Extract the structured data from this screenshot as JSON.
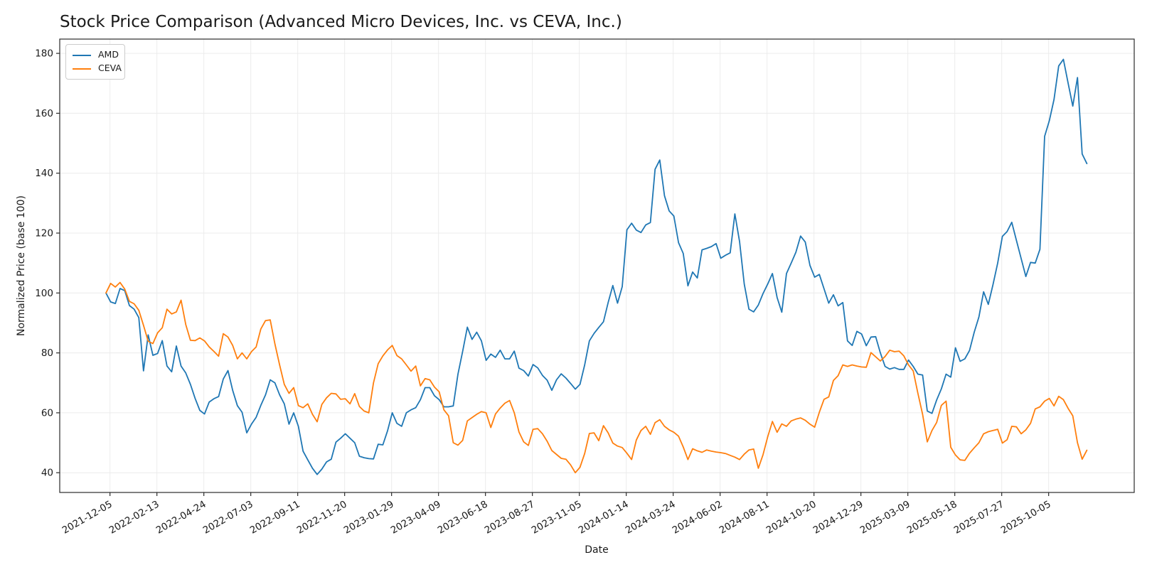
{
  "title": "Stock Price Comparison (Advanced Micro Devices, Inc. vs CEVA, Inc.)",
  "xlabel": "Date",
  "ylabel": "Normalized Price (base 100)",
  "colors": {
    "amd_line": "#1f77b4",
    "ceva_line": "#ff7f0e",
    "grid": "#ececec",
    "spine": "#2b2b2b",
    "text": "#1a1a1a"
  },
  "chart_data": {
    "type": "line",
    "title": "Stock Price Comparison (Advanced Micro Devices, Inc. vs CEVA, Inc.)",
    "xlabel": "Date",
    "ylabel": "Normalized Price (base 100)",
    "grid": true,
    "legend_position": "upper-left",
    "x_start_date": "2021-11-29",
    "x_step_days": 7,
    "x_tick_labels": [
      "2021-12-05",
      "2022-02-13",
      "2022-04-24",
      "2022-07-03",
      "2022-09-11",
      "2022-11-20",
      "2023-01-29",
      "2023-04-09",
      "2023-06-18",
      "2023-08-27",
      "2023-11-05",
      "2024-01-14",
      "2024-03-24",
      "2024-06-02",
      "2024-08-11",
      "2024-10-20",
      "2024-12-29",
      "2025-03-09",
      "2025-05-18",
      "2025-07-27",
      "2025-10-05"
    ],
    "x_tick_rotation_deg": 30,
    "y_ticks": [
      40,
      60,
      80,
      100,
      120,
      140,
      160,
      180
    ],
    "ylim": [
      33.4,
      184.8
    ],
    "series": [
      {
        "name": "AMD",
        "color": "#1f77b4",
        "values": [
          100.0,
          97.0,
          96.5,
          101.5,
          100.8,
          95.8,
          94.6,
          91.8,
          74.0,
          86.0,
          79.2,
          79.8,
          84.1,
          75.6,
          73.7,
          82.3,
          75.6,
          73.3,
          69.5,
          64.8,
          60.8,
          59.6,
          63.6,
          64.7,
          65.4,
          71.3,
          74.1,
          67.5,
          62.4,
          60.2,
          53.3,
          56.2,
          58.5,
          62.5,
          66.0,
          71.0,
          70.0,
          66.0,
          63.0,
          56.2,
          60.0,
          55.5,
          47.2,
          44.3,
          41.5,
          39.4,
          41.2,
          43.6,
          44.5,
          50.2,
          51.5,
          53.0,
          51.5,
          50.0,
          45.5,
          45.0,
          44.7,
          44.6,
          49.5,
          49.3,
          54.0,
          60.0,
          56.5,
          55.5,
          60.0,
          61.0,
          61.7,
          64.4,
          68.4,
          68.4,
          65.7,
          64.4,
          62.0,
          62.0,
          62.3,
          72.9,
          80.5,
          88.6,
          84.5,
          86.9,
          84.0,
          77.5,
          79.6,
          78.5,
          80.9,
          78.0,
          78.0,
          80.6,
          74.9,
          74.1,
          72.3,
          76.1,
          75.0,
          72.5,
          70.9,
          67.5,
          71.0,
          73.0,
          71.6,
          69.8,
          67.9,
          69.5,
          76.0,
          84.0,
          86.5,
          88.5,
          90.4,
          96.8,
          102.5,
          96.6,
          102.1,
          121.1,
          123.3,
          121.0,
          120.2,
          122.7,
          123.5,
          141.3,
          144.4,
          132.5,
          127.4,
          125.7,
          116.8,
          113.2,
          102.4,
          107.0,
          105.0,
          114.4,
          114.9,
          115.5,
          116.5,
          111.6,
          112.6,
          113.4,
          126.4,
          117.2,
          103.0,
          94.6,
          93.7,
          96.0,
          99.8,
          103.0,
          106.5,
          98.5,
          93.6,
          106.5,
          110.0,
          113.6,
          119.0,
          117.0,
          109.2,
          105.3,
          106.2,
          101.4,
          96.6,
          99.4,
          95.7,
          96.8,
          84.0,
          82.5,
          87.2,
          86.3,
          82.4,
          85.3,
          85.4,
          80.0,
          75.5,
          74.6,
          75.1,
          74.5,
          74.5,
          77.6,
          75.5,
          72.9,
          72.6,
          60.6,
          59.8,
          64.3,
          68.0,
          72.9,
          71.9,
          81.7,
          77.2,
          78.0,
          80.8,
          86.9,
          92.0,
          100.4,
          96.2,
          102.8,
          110.0,
          118.9,
          120.5,
          123.6,
          117.5,
          111.5,
          105.5,
          110.2,
          110.0,
          114.6,
          152.3,
          157.5,
          164.6,
          175.8,
          178.0,
          170.1,
          162.4,
          171.9,
          146.4,
          143.2
        ]
      },
      {
        "name": "CEVA",
        "color": "#ff7f0e",
        "values": [
          100.0,
          103.2,
          102.0,
          103.5,
          101.3,
          97.2,
          96.4,
          94.2,
          89.2,
          83.9,
          83.1,
          86.7,
          88.4,
          94.6,
          93.0,
          93.7,
          97.6,
          89.5,
          84.2,
          84.1,
          85.0,
          84.0,
          82.0,
          80.5,
          78.9,
          86.4,
          85.3,
          82.5,
          78.0,
          80.0,
          78.0,
          80.4,
          82.0,
          88.0,
          90.8,
          91.0,
          83.0,
          76.0,
          69.5,
          66.5,
          68.4,
          62.4,
          61.7,
          63.0,
          59.5,
          57.0,
          62.8,
          65.0,
          66.5,
          66.3,
          64.5,
          64.7,
          63.0,
          66.4,
          62.1,
          60.6,
          60.0,
          70.0,
          76.4,
          79.0,
          81.0,
          82.5,
          79.1,
          78.0,
          76.0,
          73.9,
          75.6,
          69.0,
          71.4,
          71.0,
          68.6,
          67.0,
          61.0,
          59.0,
          50.0,
          49.2,
          50.8,
          57.3,
          58.4,
          59.5,
          60.4,
          60.0,
          55.1,
          59.6,
          61.6,
          63.2,
          64.1,
          60.0,
          53.6,
          50.3,
          49.1,
          54.5,
          54.7,
          53.0,
          50.5,
          47.4,
          46.1,
          44.8,
          44.5,
          42.6,
          40.0,
          41.8,
          46.4,
          53.1,
          53.3,
          50.7,
          55.7,
          53.3,
          49.9,
          48.9,
          48.4,
          46.5,
          44.4,
          50.9,
          54.1,
          55.5,
          52.8,
          56.7,
          57.7,
          55.5,
          54.3,
          53.5,
          52.2,
          48.6,
          44.4,
          48.0,
          47.3,
          46.8,
          47.6,
          47.2,
          46.9,
          46.7,
          46.4,
          45.8,
          45.2,
          44.4,
          46.2,
          47.6,
          47.9,
          41.5,
          46.0,
          52.0,
          57.1,
          53.5,
          56.3,
          55.5,
          57.3,
          57.9,
          58.3,
          57.5,
          56.2,
          55.2,
          60.2,
          64.5,
          65.3,
          70.8,
          72.4,
          76.0,
          75.5,
          76.0,
          75.6,
          75.3,
          75.2,
          80.1,
          78.7,
          77.3,
          78.8,
          80.9,
          80.4,
          80.6,
          79.0,
          76.0,
          74.0,
          66.5,
          59.5,
          50.3,
          54.1,
          56.8,
          62.5,
          63.9,
          48.5,
          45.9,
          44.3,
          44.1,
          46.5,
          48.3,
          50.0,
          53.0,
          53.7,
          54.1,
          54.5,
          49.9,
          51.0,
          55.5,
          55.3,
          53.0,
          54.3,
          56.5,
          61.3,
          62.0,
          63.9,
          64.8,
          62.3,
          65.5,
          64.4,
          61.5,
          59.0,
          50.0,
          44.5,
          47.5
        ]
      }
    ]
  }
}
